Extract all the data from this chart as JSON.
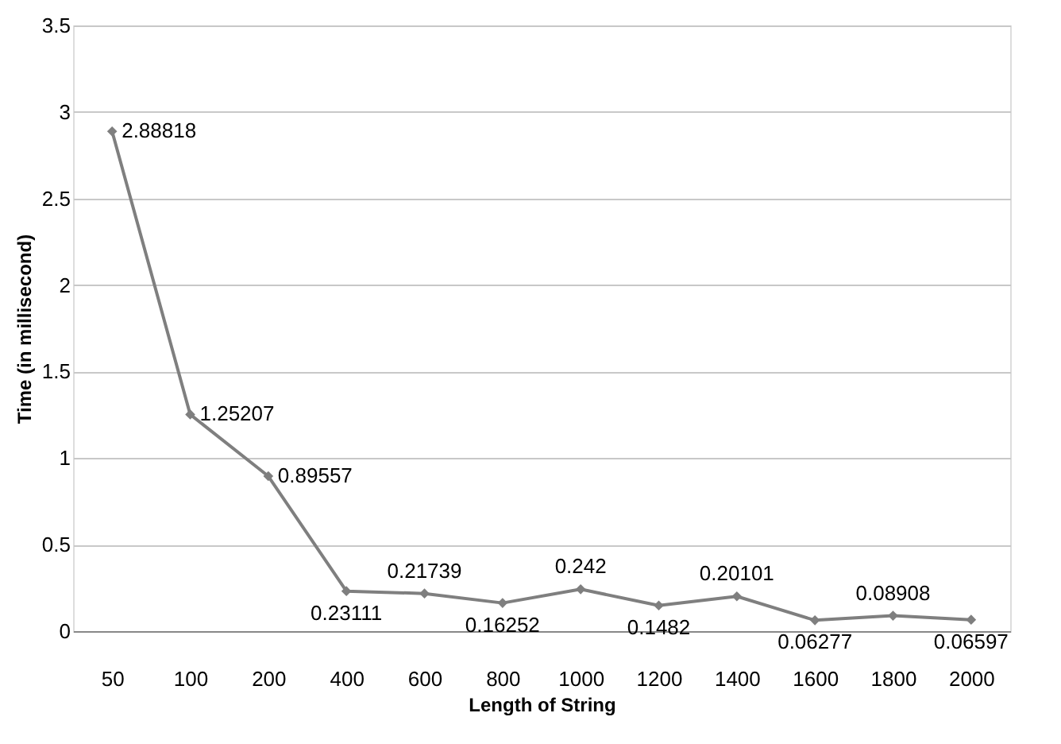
{
  "chart_data": {
    "type": "line",
    "xlabel": "Length of String",
    "ylabel": "Time (in millisecond)",
    "categories": [
      "50",
      "100",
      "200",
      "400",
      "600",
      "800",
      "1000",
      "1200",
      "1400",
      "1600",
      "1800",
      "2000"
    ],
    "series": [
      {
        "color": "#7f7f7f",
        "values": [
          2.88818,
          1.25207,
          0.89557,
          0.23111,
          0.21739,
          0.16252,
          0.242,
          0.1482,
          0.20101,
          0.06277,
          0.08908,
          0.06597
        ]
      }
    ],
    "ylim": [
      0,
      3.5
    ],
    "yticks": [
      0,
      0.5,
      1,
      1.5,
      2,
      2.5,
      3,
      3.5
    ],
    "grid": "y",
    "marker": "diamond",
    "line_style": "solid",
    "data_labels": true
  }
}
